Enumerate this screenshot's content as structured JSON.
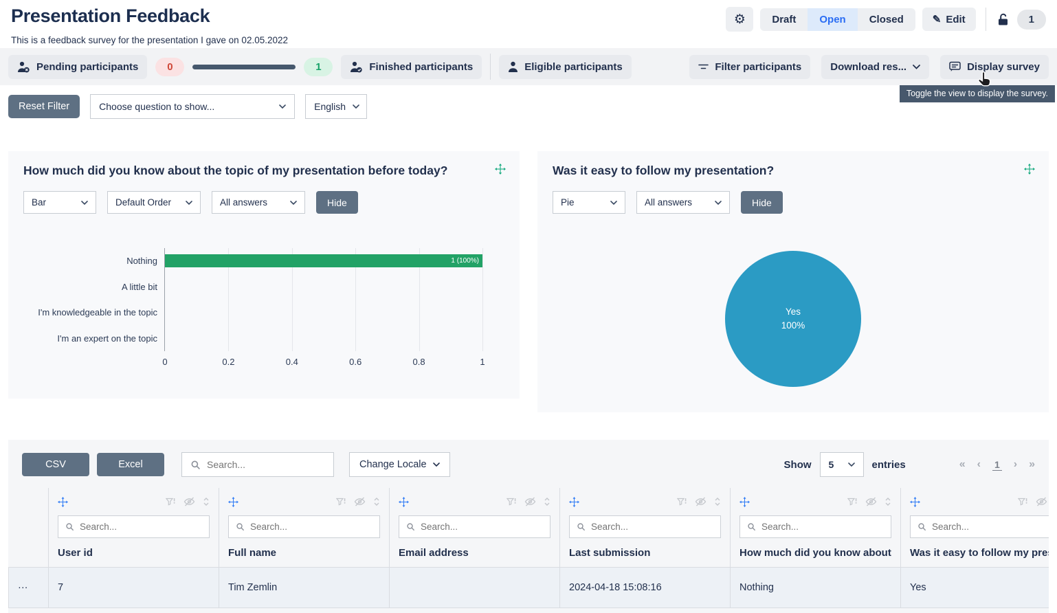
{
  "colors": {
    "accent_blue": "#2a6df4",
    "slate_button": "#5e7083",
    "bar_green": "#22a266",
    "pie_blue": "#2b9bc4",
    "pending_red": "#cf4738",
    "finished_green": "#16a268",
    "tooltip_bg": "#47586c"
  },
  "header": {
    "title": "Presentation Feedback",
    "subtitle": "This is a feedback survey for the presentation I gave on 02.05.2022",
    "status_tabs": [
      {
        "label": "Draft",
        "active": false
      },
      {
        "label": "Open",
        "active": true
      },
      {
        "label": "Closed",
        "active": false
      }
    ],
    "edit_label": "Edit",
    "edit_icon": "pencil",
    "count_badge": "1"
  },
  "toolbar": {
    "pending_label": "Pending participants",
    "pending_count": "0",
    "finished_count": "1",
    "finished_label": "Finished participants",
    "eligible_label": "Eligible participants",
    "filter_label": "Filter participants",
    "download_label": "Download res...",
    "display_label": "Display survey",
    "tooltip": "Toggle the view to display the survey."
  },
  "filters": {
    "reset_label": "Reset Filter",
    "question_select": "Choose question to show...",
    "language_select": "English"
  },
  "chart_data": [
    {
      "type": "bar",
      "orientation": "horizontal",
      "title": "How much did you know about the topic of my presentation before today?",
      "categories": [
        "Nothing",
        "A little bit",
        "I'm knowledgeable in the topic",
        "I'm an expert on the topic"
      ],
      "values": [
        1,
        0,
        0,
        0
      ],
      "bar_labels": [
        "1 (100%)",
        "",
        "",
        ""
      ],
      "xticks": [
        "0",
        "0.2",
        "0.4",
        "0.6",
        "0.8",
        "1"
      ],
      "xlim": [
        0,
        1
      ],
      "grid": true,
      "bar_color": "#22a266",
      "controls": {
        "type_select": "Bar",
        "order_select": "Default Order",
        "answers_select": "All answers",
        "hide_label": "Hide"
      }
    },
    {
      "type": "pie",
      "title": "Was it easy to follow my presentation?",
      "labels": [
        "Yes"
      ],
      "values": [
        100
      ],
      "colors": [
        "#2b9bc4"
      ],
      "center_lines": [
        "Yes",
        "100%"
      ],
      "controls": {
        "type_select": "Pie",
        "answers_select": "All answers",
        "hide_label": "Hide"
      }
    }
  ],
  "table": {
    "csv_label": "CSV",
    "excel_label": "Excel",
    "search_placeholder": "Search...",
    "change_locale_label": "Change Locale",
    "show_label": "Show",
    "page_size": "5",
    "entries_label": "entries",
    "pagination": {
      "first": "«",
      "prev": "‹",
      "page": "1",
      "next": "›",
      "last": "»"
    },
    "columns": [
      {
        "label": "User id",
        "search_placeholder": "Search..."
      },
      {
        "label": "Full name",
        "search_placeholder": "Search..."
      },
      {
        "label": "Email address",
        "search_placeholder": "Search..."
      },
      {
        "label": "Last submission",
        "search_placeholder": "Search..."
      },
      {
        "label": "How much did you know about t",
        "search_placeholder": "Search..."
      },
      {
        "label": "Was it easy to follow my presen",
        "search_placeholder": "Search..."
      }
    ],
    "rows": [
      {
        "menu": "···",
        "user_id": "7",
        "full_name": "Tim Zemlin",
        "email": "",
        "last_submission": "2024-04-18 15:08:16",
        "knowledge": "Nothing",
        "easy_to_follow": "Yes"
      }
    ]
  }
}
